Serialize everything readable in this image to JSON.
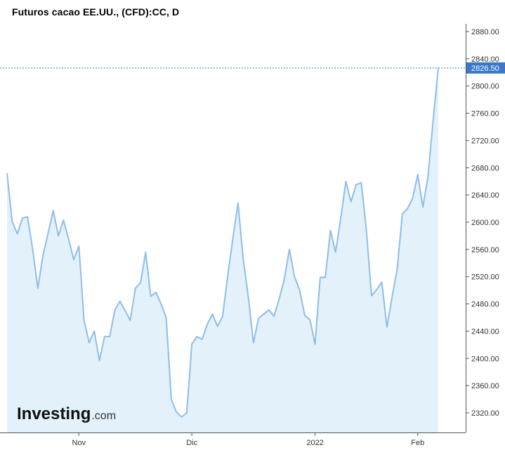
{
  "chart_data": {
    "type": "area",
    "title": "Futuros cacao EE.UU., (CFD):CC, D",
    "xlabel": "",
    "ylabel": "",
    "ylim": [
      2300,
      2900
    ],
    "yticks": [
      2320,
      2360,
      2400,
      2440,
      2480,
      2520,
      2560,
      2600,
      2640,
      2680,
      2720,
      2760,
      2800,
      2840,
      2880
    ],
    "ytick_labels": [
      "2320.00",
      "2360.00",
      "2400.00",
      "2440.00",
      "2480.00",
      "2520.00",
      "2560.00",
      "2600.00",
      "2640.00",
      "2680.00",
      "2720.00",
      "2760.00",
      "2800.00",
      "2840.00",
      "2880.00"
    ],
    "x_labels": [
      {
        "label": "Nov",
        "index": 14
      },
      {
        "label": "Dic",
        "index": 36
      },
      {
        "label": "2022",
        "index": 60
      },
      {
        "label": "Feb",
        "index": 80
      }
    ],
    "last_price": 2826.5,
    "last_price_label": "2826.50",
    "colors": {
      "line": "#8fbde8",
      "fill": "#e3f1fb",
      "price_badge": "#3a78c9",
      "price_line": "#3a78c9",
      "grid_axis": "#555555"
    },
    "grid": false,
    "series": [
      {
        "values": [
          2672,
          2601,
          2583,
          2606,
          2608,
          2560,
          2503,
          2551,
          2584,
          2617,
          2580,
          2603,
          2575,
          2545,
          2565,
          2456,
          2423,
          2440,
          2397,
          2432,
          2432,
          2471,
          2484,
          2470,
          2456,
          2503,
          2511,
          2556,
          2491,
          2497,
          2480,
          2460,
          2340,
          2321,
          2314,
          2320,
          2421,
          2432,
          2428,
          2450,
          2465,
          2447,
          2462,
          2522,
          2577,
          2628,
          2546,
          2490,
          2423,
          2459,
          2465,
          2471,
          2462,
          2487,
          2516,
          2560,
          2520,
          2500,
          2463,
          2457,
          2421,
          2519,
          2519,
          2588,
          2556,
          2606,
          2660,
          2630,
          2655,
          2658,
          2588,
          2492,
          2501,
          2512,
          2446,
          2490,
          2531,
          2612,
          2620,
          2635,
          2670,
          2622,
          2667,
          2750,
          2826.5
        ]
      }
    ]
  },
  "logo": {
    "main": "Investing",
    "suffix": ".com"
  }
}
